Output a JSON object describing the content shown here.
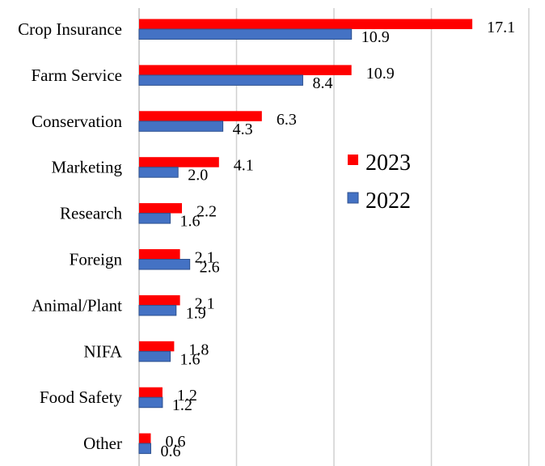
{
  "chart_data": {
    "type": "bar",
    "orientation": "horizontal",
    "categories": [
      "Crop Insurance",
      "Farm Service",
      "Conservation",
      "Marketing",
      "Research",
      "Foreign",
      "Animal/Plant",
      "NIFA",
      "Food Safety",
      "Other"
    ],
    "series": [
      {
        "name": "2023",
        "color": "#ff0000",
        "values": [
          17.1,
          10.9,
          6.3,
          4.1,
          2.2,
          2.1,
          2.1,
          1.8,
          1.2,
          0.6
        ]
      },
      {
        "name": "2022",
        "color": "#4472c4",
        "values": [
          10.9,
          8.4,
          4.3,
          2.0,
          1.6,
          2.6,
          1.9,
          1.6,
          1.2,
          0.6
        ]
      }
    ],
    "value_labels": [
      [
        "17.1",
        "10.9",
        "6.3",
        "4.1",
        "2.2",
        "2.1",
        "2.1",
        "1.8",
        "1.2",
        "0.6"
      ],
      [
        "10.9",
        "8.4",
        "4.3",
        "2.0",
        "1.6",
        "2.6",
        "1.9",
        "1.6",
        "1.2",
        "0.6"
      ]
    ],
    "xlim": [
      0,
      20
    ],
    "grid_step": 5,
    "grid": true,
    "legend_position": "center-right",
    "title": "",
    "xlabel": "",
    "ylabel": ""
  }
}
